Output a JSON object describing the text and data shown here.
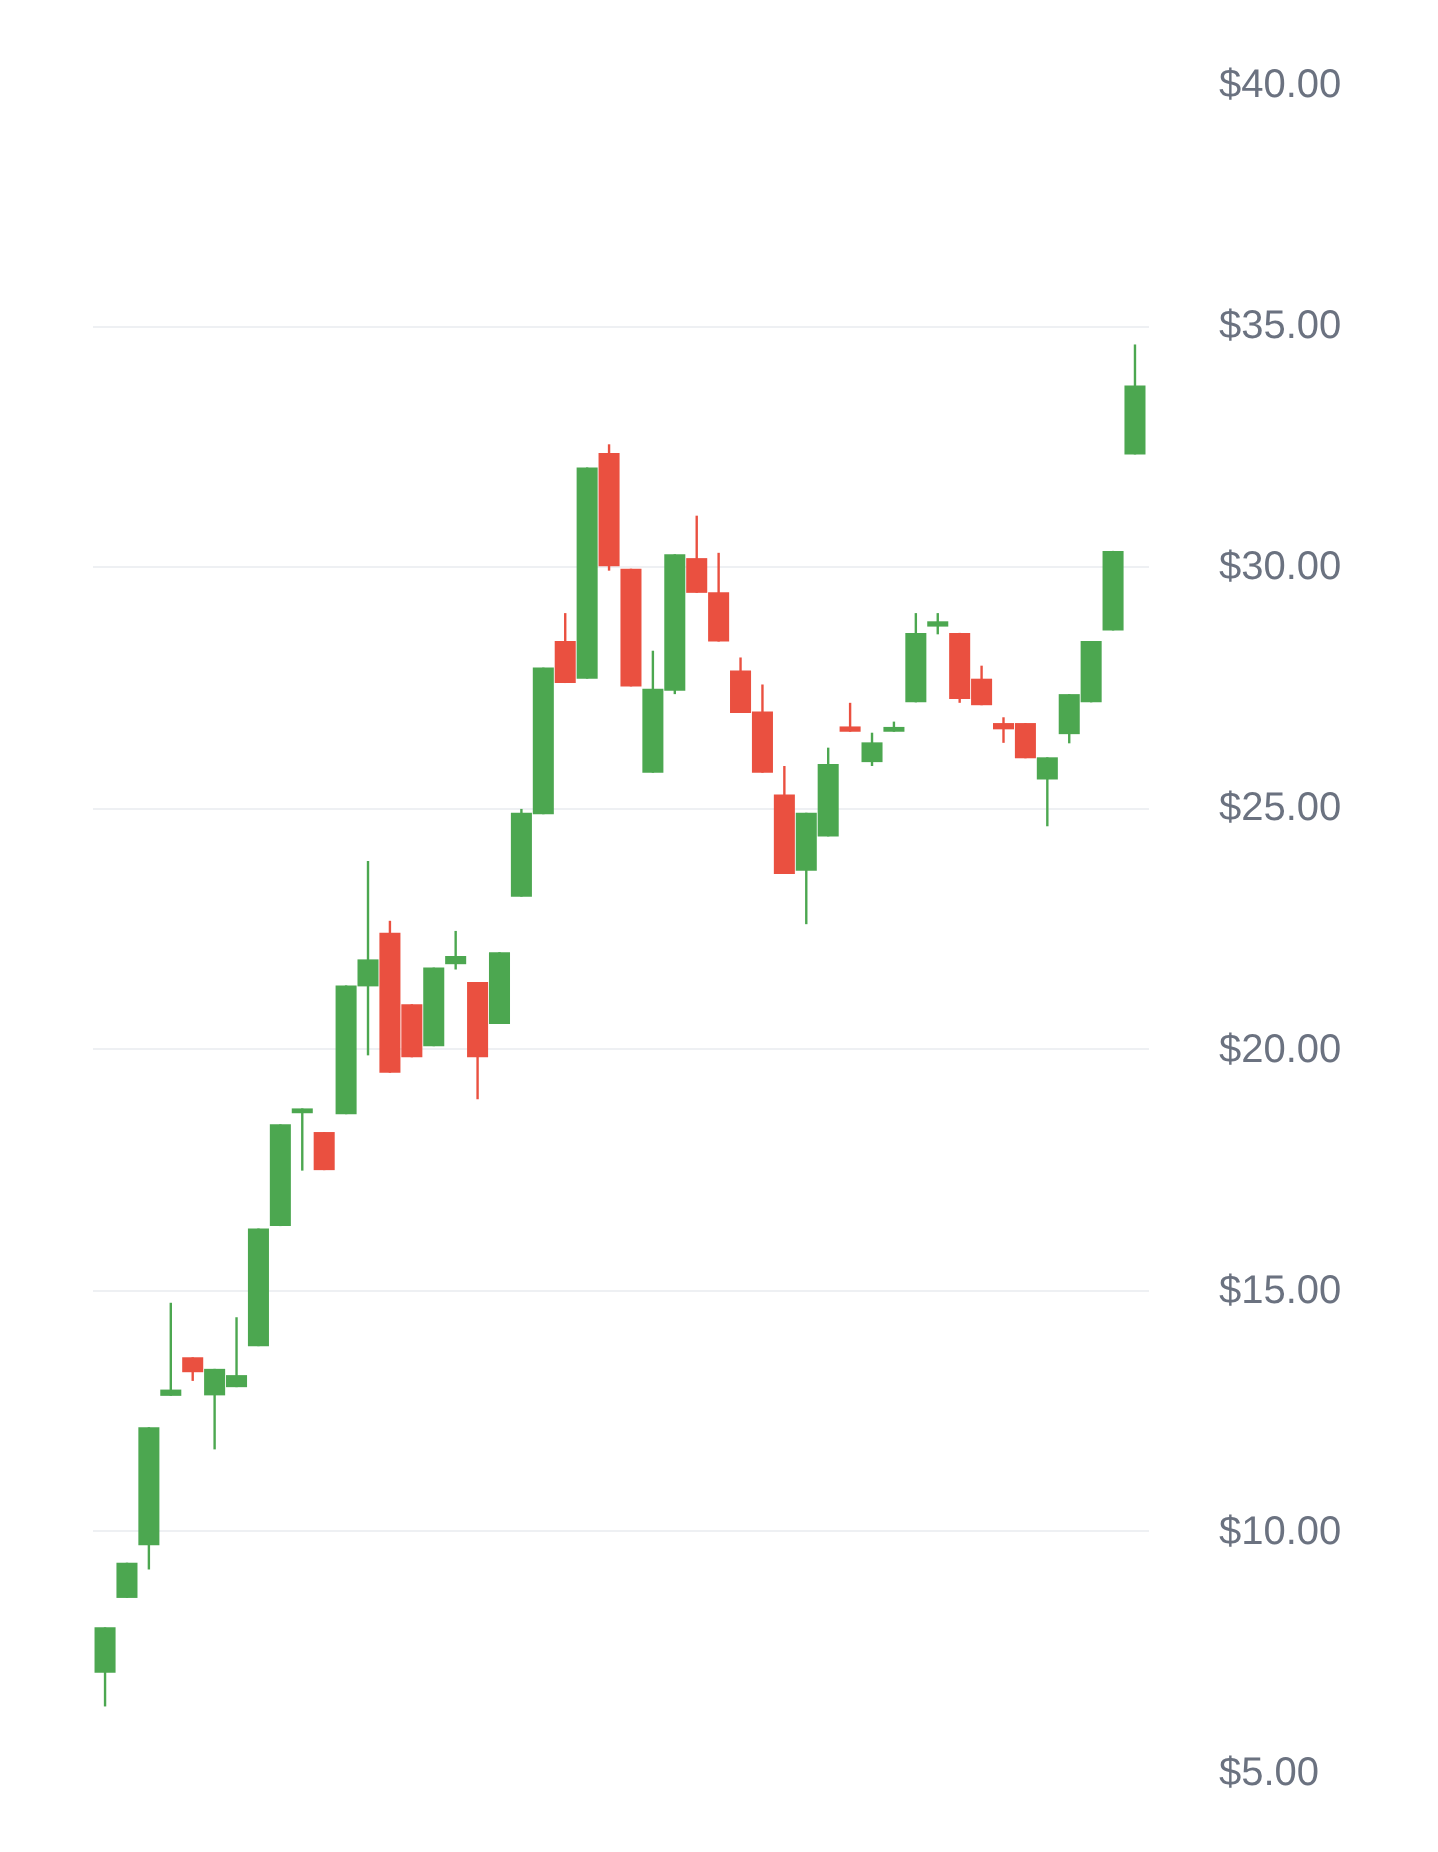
{
  "chart_data": {
    "type": "candlestick",
    "categories": [
      null,
      null,
      null,
      null,
      null,
      null,
      null,
      null,
      null,
      null,
      null,
      null,
      null,
      null,
      null,
      null,
      null,
      null,
      null,
      null,
      null,
      null,
      null,
      null,
      null,
      null,
      null,
      null,
      null,
      null,
      null,
      null,
      null,
      null,
      null,
      null,
      null,
      null,
      null,
      null,
      null,
      null,
      null,
      null,
      null,
      null,
      null,
      null
    ],
    "ohlc": [
      [
        7.08,
        8.02,
        6.38,
        8.02
      ],
      [
        8.63,
        9.36,
        8.63,
        9.36
      ],
      [
        9.72,
        12.17,
        9.22,
        12.17
      ],
      [
        12.82,
        14.75,
        12.82,
        12.95
      ],
      [
        13.62,
        13.62,
        13.13,
        13.31
      ],
      [
        12.83,
        13.38,
        11.71,
        13.38
      ],
      [
        13.0,
        14.45,
        13.0,
        13.25
      ],
      [
        13.85,
        16.29,
        13.85,
        16.29
      ],
      [
        16.34,
        18.45,
        16.34,
        18.45
      ],
      [
        18.68,
        18.78,
        17.49,
        18.78
      ],
      [
        18.29,
        18.29,
        17.5,
        17.5
      ],
      [
        18.66,
        21.33,
        18.66,
        21.33
      ],
      [
        21.31,
        23.91,
        19.88,
        21.87
      ],
      [
        22.42,
        22.67,
        19.52,
        19.52
      ],
      [
        20.94,
        20.94,
        19.84,
        19.84
      ],
      [
        20.07,
        21.7,
        20.07,
        21.7
      ],
      [
        21.77,
        22.46,
        21.66,
        21.94
      ],
      [
        21.4,
        21.4,
        18.97,
        19.84
      ],
      [
        20.53,
        22.02,
        20.53,
        22.02
      ],
      [
        23.17,
        24.99,
        23.17,
        24.91
      ],
      [
        24.88,
        27.92,
        24.88,
        27.92
      ],
      [
        28.47,
        29.05,
        27.6,
        27.6
      ],
      [
        27.69,
        32.07,
        27.69,
        32.07
      ],
      [
        32.37,
        32.55,
        29.93,
        30.02
      ],
      [
        29.97,
        29.97,
        27.53,
        27.53
      ],
      [
        25.74,
        28.27,
        25.74,
        27.48
      ],
      [
        27.44,
        30.27,
        27.37,
        30.27
      ],
      [
        30.19,
        31.07,
        29.47,
        29.47
      ],
      [
        29.48,
        30.3,
        28.46,
        28.46
      ],
      [
        27.86,
        28.13,
        26.98,
        26.98
      ],
      [
        27.01,
        27.57,
        25.74,
        25.74
      ],
      [
        25.29,
        25.88,
        23.64,
        23.64
      ],
      [
        23.71,
        24.91,
        22.6,
        24.91
      ],
      [
        24.42,
        26.26,
        24.42,
        25.92
      ],
      [
        26.7,
        27.19,
        26.59,
        26.59
      ],
      [
        25.96,
        26.57,
        25.88,
        26.37
      ],
      [
        26.59,
        26.8,
        26.59,
        26.69
      ],
      [
        27.2,
        29.05,
        27.2,
        28.64
      ],
      [
        28.77,
        29.05,
        28.61,
        28.88
      ],
      [
        28.64,
        28.64,
        27.19,
        27.27
      ],
      [
        27.69,
        27.96,
        27.14,
        27.14
      ],
      [
        26.77,
        26.89,
        26.36,
        26.64
      ],
      [
        26.77,
        26.77,
        26.04,
        26.04
      ],
      [
        25.6,
        26.06,
        24.63,
        26.06
      ],
      [
        26.54,
        27.37,
        26.35,
        27.37
      ],
      [
        27.2,
        28.47,
        27.2,
        28.47
      ],
      [
        28.69,
        30.34,
        28.69,
        30.34
      ],
      [
        32.34,
        34.62,
        32.34,
        33.77
      ]
    ],
    "colors": [
      "#4ca750",
      "#4ca750",
      "#4ca750",
      "#4ca750",
      "#ea5040",
      "#4ca750",
      "#4ca750",
      "#4ca750",
      "#4ca750",
      "#4ca750",
      "#ea5040",
      "#4ca750",
      "#4ca750",
      "#ea5040",
      "#ea5040",
      "#4ca750",
      "#4ca750",
      "#ea5040",
      "#4ca750",
      "#4ca750",
      "#4ca750",
      "#ea5040",
      "#4ca750",
      "#ea5040",
      "#ea5040",
      "#4ca750",
      "#4ca750",
      "#ea5040",
      "#ea5040",
      "#ea5040",
      "#ea5040",
      "#ea5040",
      "#4ca750",
      "#4ca750",
      "#ea5040",
      "#4ca750",
      "#4ca750",
      "#4ca750",
      "#4ca750",
      "#ea5040",
      "#ea5040",
      "#ea5040",
      "#ea5040",
      "#4ca750",
      "#4ca750",
      "#4ca750",
      "#4ca750",
      "#4ca750"
    ],
    "ylim": [
      5,
      40
    ],
    "yticks": [
      {
        "value": 5,
        "label": "$5.00"
      },
      {
        "value": 10,
        "label": "$10.00"
      },
      {
        "value": 15,
        "label": "$15.00"
      },
      {
        "value": 20,
        "label": "$20.00"
      },
      {
        "value": 25,
        "label": "$25.00"
      },
      {
        "value": 30,
        "label": "$30.00"
      },
      {
        "value": 35,
        "label": "$35.00"
      },
      {
        "value": 40,
        "label": "$40.00"
      }
    ],
    "grid": "y",
    "tick_labels": "y"
  }
}
